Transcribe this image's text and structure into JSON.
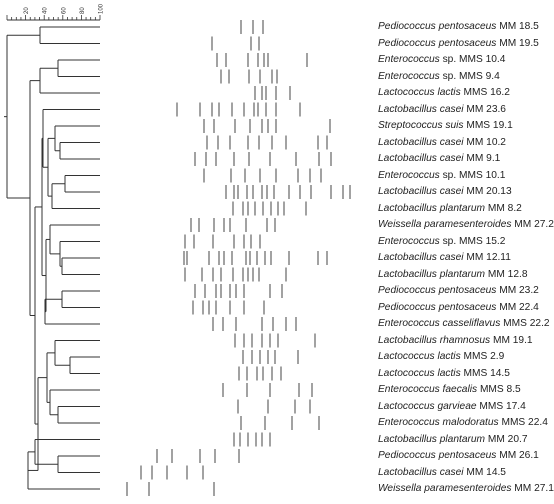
{
  "scale": {
    "ticks": [
      "20",
      "40",
      "60",
      "80",
      "100"
    ]
  },
  "isolates": [
    {
      "genus_species": "Pediococcus pentosaceus",
      "sp_italic": true,
      "strain": "MM 18.5",
      "bands": [
        241,
        253,
        263
      ]
    },
    {
      "genus_species": "Pediococcus pentosaceus",
      "sp_italic": true,
      "strain": "MM 19.5",
      "bands": [
        212,
        251,
        259
      ]
    },
    {
      "genus_species": "Enterococcus",
      "sp_italic": true,
      "sp_suffix": " sp.",
      "strain": "MMS 10.4",
      "bands": [
        217,
        226,
        248,
        258,
        264,
        268,
        307
      ]
    },
    {
      "genus_species": "Enterococcus",
      "sp_italic": true,
      "sp_suffix": " sp.",
      "strain": "MMS 9.4",
      "bands": [
        221,
        229,
        249,
        260,
        272,
        277
      ]
    },
    {
      "genus_species": "Lactococcus lactis",
      "sp_italic": true,
      "strain": "MMS 16.2",
      "bands": [
        255,
        262,
        266,
        276,
        290
      ]
    },
    {
      "genus_species": "Lactobacillus casei",
      "sp_italic": true,
      "strain": "MM 23.6",
      "bands": [
        177,
        200,
        212,
        219,
        232,
        244,
        254,
        258,
        266,
        276,
        300
      ]
    },
    {
      "genus_species": "Streptococcus suis",
      "sp_italic": true,
      "strain": "MMS 19.1",
      "bands": [
        204,
        214,
        235,
        250,
        262,
        268,
        276,
        330
      ]
    },
    {
      "genus_species": "Lactobacillus casei",
      "sp_italic": true,
      "strain": "MM 10.2",
      "bands": [
        207,
        218,
        230,
        248,
        259,
        272,
        286,
        318,
        327
      ]
    },
    {
      "genus_species": "Lactobacillus casei",
      "sp_italic": true,
      "strain": "MM 9.1",
      "bands": [
        195,
        206,
        216,
        234,
        249,
        270,
        296,
        319,
        331
      ]
    },
    {
      "genus_species": "Enterococcus",
      "sp_italic": true,
      "sp_suffix": " sp.",
      "strain": "MMS 10.1",
      "bands": [
        204,
        231,
        245,
        260,
        276,
        298,
        310,
        321
      ]
    },
    {
      "genus_species": "Lactobacillus casei",
      "sp_italic": true,
      "strain": "MM 20.13",
      "bands": [
        226,
        234,
        238,
        247,
        253,
        262,
        267,
        274,
        289,
        300,
        311,
        331,
        343,
        350
      ]
    },
    {
      "genus_species": "Lactobacillus plantarum",
      "sp_italic": true,
      "strain": "MM 8.2",
      "bands": [
        233,
        243,
        248,
        255,
        263,
        271,
        278,
        284,
        306
      ]
    },
    {
      "genus_species": "Weissella paramesenteroides",
      "sp_italic": true,
      "strain": "MM 27.2",
      "bands": [
        191,
        199,
        214,
        224,
        230,
        246,
        267,
        275
      ]
    },
    {
      "genus_species": "Enterococcus",
      "sp_italic": true,
      "sp_suffix": " sp.",
      "strain": "MMS 15.2",
      "bands": [
        185,
        194,
        213,
        234,
        244,
        251,
        260
      ]
    },
    {
      "genus_species": "Lactobacillus casei",
      "sp_italic": true,
      "strain": "MM 12.11",
      "bands": [
        184,
        187,
        209,
        219,
        224,
        232,
        246,
        250,
        257,
        265,
        271,
        289,
        318,
        327
      ]
    },
    {
      "genus_species": "Lactobacillus plantarum",
      "sp_italic": true,
      "strain": "MM 12.8",
      "bands": [
        185,
        202,
        213,
        221,
        233,
        243,
        248,
        253,
        259,
        286
      ]
    },
    {
      "genus_species": "Pediococcus pentosaceus",
      "sp_italic": true,
      "strain": "MM 23.2",
      "bands": [
        195,
        205,
        216,
        221,
        230,
        236,
        244,
        270,
        282
      ]
    },
    {
      "genus_species": "Pediococcus pentosaceus",
      "sp_italic": true,
      "strain": "MM 22.4",
      "bands": [
        193,
        203,
        209,
        216,
        230,
        244,
        264
      ]
    },
    {
      "genus_species": "Enterococcus casseliflavus",
      "sp_italic": true,
      "strain": "MMS 22.2",
      "bands": [
        213,
        223,
        236,
        262,
        273,
        286,
        296
      ]
    },
    {
      "genus_species": "Lactobacillus rhamnosus",
      "sp_italic": true,
      "strain": "MM 19.1",
      "bands": [
        235,
        244,
        252,
        262,
        270,
        278,
        315
      ]
    },
    {
      "genus_species": "Lactococcus lactis",
      "sp_italic": true,
      "strain": "MMS 2.9",
      "bands": [
        243,
        252,
        260,
        268,
        275,
        298
      ]
    },
    {
      "genus_species": "Lactococcus lactis",
      "sp_italic": true,
      "strain": "MMS 14.5",
      "bands": [
        239,
        247,
        257,
        263,
        272,
        281
      ]
    },
    {
      "genus_species": "Enterococcus faecalis",
      "sp_italic": true,
      "strain": "MMS 8.5",
      "bands": [
        223,
        247,
        270,
        299,
        312
      ]
    },
    {
      "genus_species": "Lactococcus garvieae",
      "sp_italic": true,
      "strain": "MMS 17.4",
      "bands": [
        238,
        268,
        295,
        310
      ]
    },
    {
      "genus_species": "Enterococcus malodoratus",
      "sp_italic": true,
      "strain": "MMS 22.4",
      "bands": [
        241,
        265,
        292,
        319
      ]
    },
    {
      "genus_species": "Lactobacillus plantarum",
      "sp_italic": true,
      "strain": "MM 20.7",
      "bands": [
        234,
        240,
        248,
        256,
        262,
        270
      ]
    },
    {
      "genus_species": "Pediococcus pentosaceus",
      "sp_italic": true,
      "strain": "MM 26.1",
      "bands": [
        157,
        172,
        200,
        215,
        239
      ]
    },
    {
      "genus_species": "Lactobacillus casei",
      "sp_italic": true,
      "strain": "MM 14.5",
      "bands": [
        141,
        152,
        167,
        187,
        203
      ]
    },
    {
      "genus_species": "Weissella paramesenteroides",
      "sp_italic": true,
      "strain": "MM 27.1",
      "bands": [
        127,
        149,
        214
      ]
    }
  ],
  "colors": {
    "line": "#333333",
    "band": "#555555",
    "text": "#222222"
  }
}
